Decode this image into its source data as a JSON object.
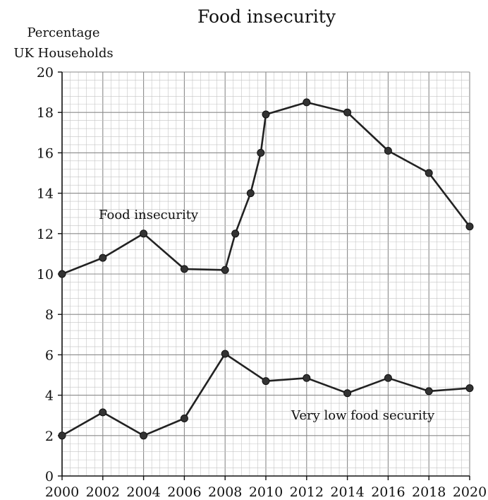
{
  "chart_data": {
    "type": "line",
    "title": "Food insecurity",
    "ylabel_line1": "Percentage",
    "ylabel_line2": "UK Households",
    "xlabel": "",
    "xlim": [
      2000,
      2020
    ],
    "ylim": [
      0,
      20
    ],
    "x_ticks": [
      "2000",
      "2002",
      "2004",
      "2006",
      "2008",
      "2010",
      "2012",
      "2014",
      "2016",
      "2018",
      "2020"
    ],
    "y_ticks": [
      "0",
      "2",
      "4",
      "6",
      "8",
      "10",
      "12",
      "14",
      "16",
      "18",
      "20"
    ],
    "grid": true,
    "series": [
      {
        "name": "Food insecurity",
        "color": "#222222",
        "points": [
          {
            "x": 2000,
            "y": 10.0
          },
          {
            "x": 2002,
            "y": 10.8
          },
          {
            "x": 2004,
            "y": 12.0
          },
          {
            "x": 2006,
            "y": 10.25
          },
          {
            "x": 2008,
            "y": 10.2
          },
          {
            "x": 2008.5,
            "y": 12.0
          },
          {
            "x": 2009.25,
            "y": 14.0
          },
          {
            "x": 2009.75,
            "y": 16.0
          },
          {
            "x": 2010,
            "y": 17.9
          },
          {
            "x": 2012,
            "y": 18.5
          },
          {
            "x": 2014,
            "y": 18.0
          },
          {
            "x": 2016,
            "y": 16.1
          },
          {
            "x": 2018,
            "y": 15.0
          },
          {
            "x": 2020,
            "y": 12.35
          }
        ]
      },
      {
        "name": "Very low food security",
        "color": "#222222",
        "points": [
          {
            "x": 2000,
            "y": 2.0
          },
          {
            "x": 2002,
            "y": 3.15
          },
          {
            "x": 2004,
            "y": 2.0
          },
          {
            "x": 2006,
            "y": 2.85
          },
          {
            "x": 2008,
            "y": 6.05
          },
          {
            "x": 2010,
            "y": 4.7
          },
          {
            "x": 2012,
            "y": 4.85
          },
          {
            "x": 2014,
            "y": 4.1
          },
          {
            "x": 2016,
            "y": 4.85
          },
          {
            "x": 2018,
            "y": 4.2
          },
          {
            "x": 2020,
            "y": 4.35
          }
        ]
      }
    ]
  }
}
